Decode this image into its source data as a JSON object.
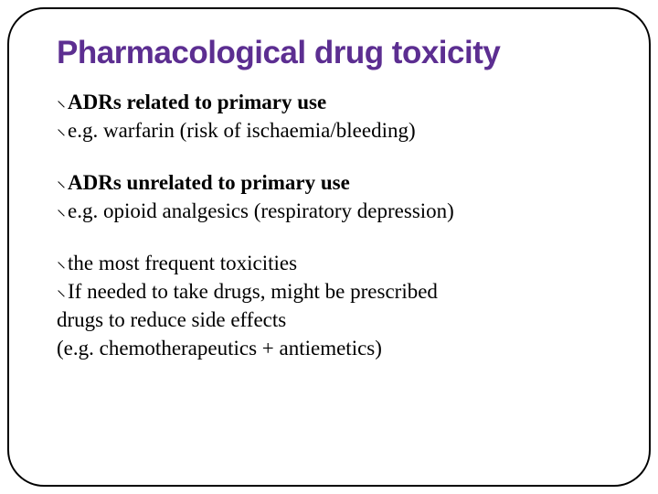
{
  "title_color": "#5c2e91",
  "border_color": "#000000",
  "text_color": "#000000",
  "background_color": "#ffffff",
  "border_radius": 40,
  "title": "Pharmacological drug toxicity",
  "title_fontsize": 35,
  "body_fontsize": 23,
  "bullet_glyph": "⸜",
  "groups": [
    {
      "lines": [
        {
          "text": "ADRs related to primary use",
          "bold": true,
          "bulleted": true
        },
        {
          "text": "e.g. warfarin (risk of ischaemia/bleeding)",
          "bold": false,
          "bulleted": true
        }
      ]
    },
    {
      "lines": [
        {
          "text": "ADRs unrelated to primary use",
          "bold": true,
          "bulleted": true
        },
        {
          "text": "e.g. opioid analgesics (respiratory depression)",
          "bold": false,
          "bulleted": true
        }
      ]
    },
    {
      "lines": [
        {
          "text": "the most frequent toxicities",
          "bold": false,
          "bulleted": true
        },
        {
          "text": "If needed to take drugs, might be prescribed",
          "bold": false,
          "bulleted": true
        },
        {
          "text": "drugs to reduce side effects",
          "bold": false,
          "bulleted": false
        },
        {
          "text": "(e.g. chemotherapeutics + antiemetics)",
          "bold": false,
          "bulleted": false
        }
      ]
    }
  ]
}
